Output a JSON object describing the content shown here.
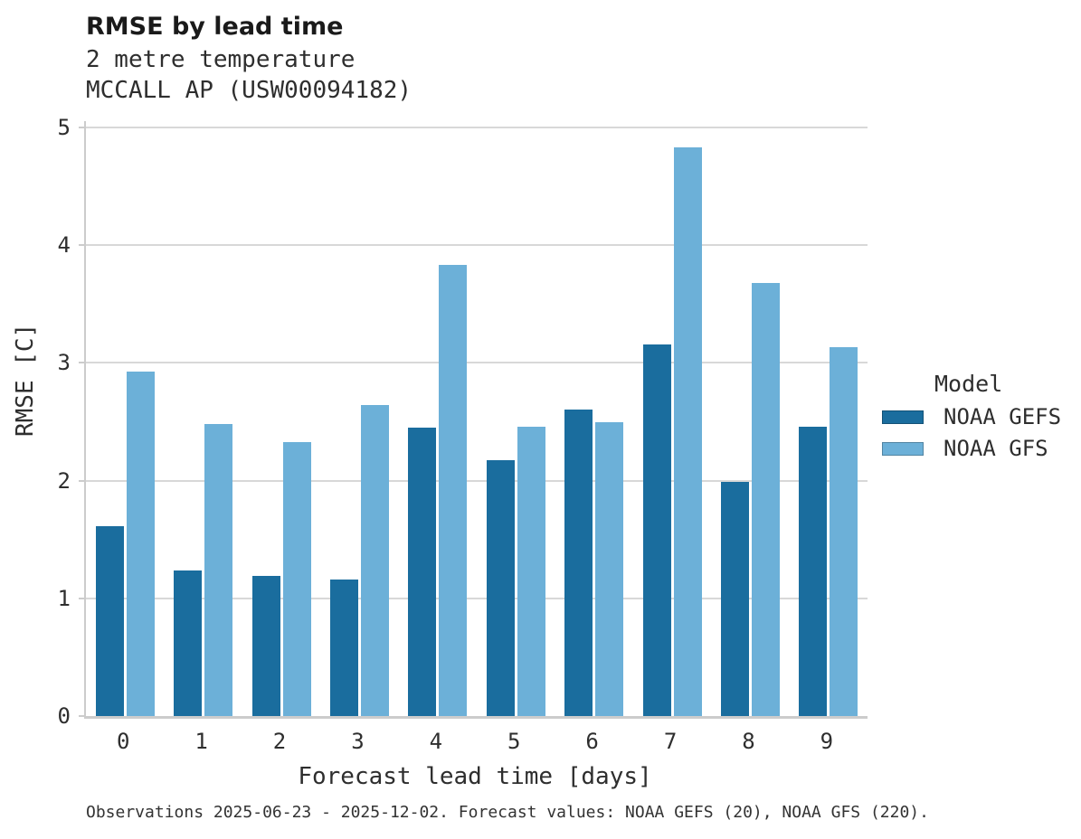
{
  "header": {
    "title": "RMSE by lead time",
    "subtitle1": "2 metre temperature",
    "subtitle2": "MCCALL AP (USW00094182)"
  },
  "legend": {
    "title": "Model"
  },
  "footer": {
    "text": "Observations 2025-06-23 - 2025-12-02. Forecast values: NOAA GEFS (20), NOAA GFS (220)."
  },
  "colors": {
    "gefs": "#1a6d9e",
    "gfs": "#6cb0d8",
    "gridline": "#d8d8d8",
    "axis": "#cccccc"
  },
  "chart_data": {
    "type": "bar",
    "title": "RMSE by lead time",
    "subtitle": [
      "2 metre temperature",
      "MCCALL AP (USW00094182)"
    ],
    "categories": [
      "0",
      "1",
      "2",
      "3",
      "4",
      "5",
      "6",
      "7",
      "8",
      "9"
    ],
    "series": [
      {
        "name": "NOAA GEFS",
        "color": "#1a6d9e",
        "values": [
          1.61,
          1.24,
          1.19,
          1.16,
          2.45,
          2.17,
          2.6,
          3.16,
          1.99,
          2.46
        ]
      },
      {
        "name": "NOAA GFS",
        "color": "#6cb0d8",
        "values": [
          2.93,
          2.48,
          2.33,
          2.64,
          3.83,
          2.46,
          2.5,
          4.83,
          3.68,
          3.13
        ]
      }
    ],
    "xlabel": "Forecast lead time [days]",
    "ylabel": "RMSE [C]",
    "ylim": [
      0,
      5
    ],
    "yticks": [
      0,
      1,
      2,
      3,
      4,
      5
    ],
    "grid": true,
    "legend_title": "Model",
    "legend_position": "right",
    "caption": "Observations 2025-06-23 - 2025-12-02. Forecast values: NOAA GEFS (20), NOAA GFS (220)."
  }
}
